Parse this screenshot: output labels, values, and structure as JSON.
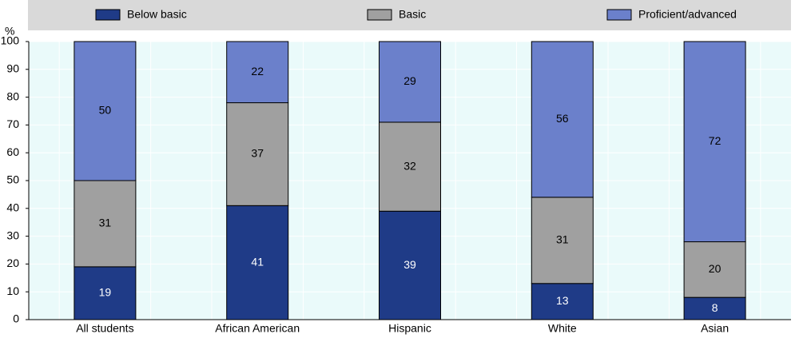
{
  "chart_data": {
    "type": "stacked_bar",
    "y_label": "%",
    "categories": [
      "All students",
      "African American",
      "Hispanic",
      "White",
      "Asian"
    ],
    "series": [
      {
        "name": "Below basic",
        "color": "#1f3b87",
        "values": [
          19,
          41,
          39,
          13,
          8
        ]
      },
      {
        "name": "Basic",
        "color": "#a0a0a0",
        "values": [
          31,
          37,
          32,
          31,
          20
        ]
      },
      {
        "name": "Proficient/advanced",
        "color": "#6b80cb",
        "values": [
          50,
          22,
          29,
          56,
          72
        ]
      }
    ],
    "ylim": [
      0,
      100
    ],
    "yticks": [
      0,
      10,
      20,
      30,
      40,
      50,
      60,
      70,
      80,
      90,
      100
    ],
    "grid": true
  }
}
